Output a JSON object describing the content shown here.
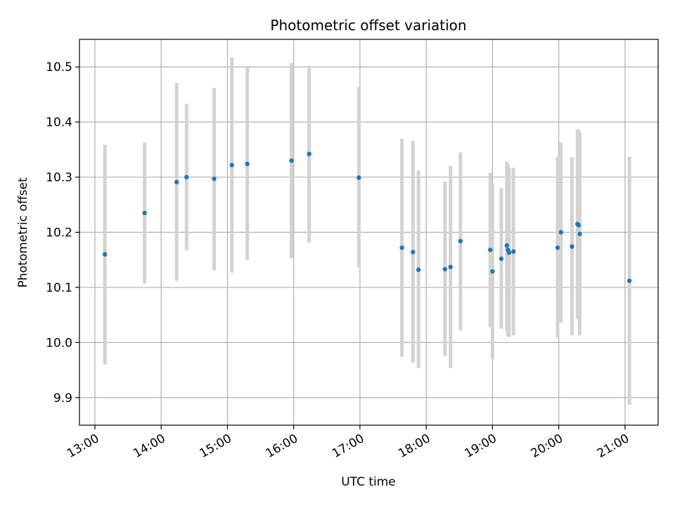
{
  "chart_data": {
    "type": "scatter",
    "title": "Photometric offset variation",
    "xlabel": "UTC time",
    "ylabel": "Photometric offset",
    "xlim": [
      "12:46",
      "21:30"
    ],
    "ylim": [
      9.85,
      10.55
    ],
    "x_ticks": [
      "13:00",
      "14:00",
      "15:00",
      "16:00",
      "17:00",
      "18:00",
      "19:00",
      "20:00",
      "21:00"
    ],
    "y_ticks": [
      9.9,
      10.0,
      10.1,
      10.2,
      10.3,
      10.4,
      10.5
    ],
    "y_tick_labels": [
      "9.9",
      "10.0",
      "10.1",
      "10.2",
      "10.3",
      "10.4",
      "10.5"
    ],
    "grid": true,
    "point_color": "#1f77b4",
    "errorbar_color": "#d3d3d3",
    "points": [
      {
        "t": "13:09",
        "y": 10.16,
        "lo": 9.96,
        "hi": 10.359
      },
      {
        "t": "13:45",
        "y": 10.235,
        "lo": 10.107,
        "hi": 10.363
      },
      {
        "t": "14:14",
        "y": 10.291,
        "lo": 10.112,
        "hi": 10.471
      },
      {
        "t": "14:23",
        "y": 10.3,
        "lo": 10.167,
        "hi": 10.433
      },
      {
        "t": "14:48",
        "y": 10.297,
        "lo": 10.131,
        "hi": 10.462
      },
      {
        "t": "15:04",
        "y": 10.322,
        "lo": 10.127,
        "hi": 10.517
      },
      {
        "t": "15:18",
        "y": 10.324,
        "lo": 10.149,
        "hi": 10.499
      },
      {
        "t": "15:58",
        "y": 10.33,
        "lo": 10.153,
        "hi": 10.507
      },
      {
        "t": "16:14",
        "y": 10.342,
        "lo": 10.181,
        "hi": 10.502
      },
      {
        "t": "16:59",
        "y": 10.299,
        "lo": 10.136,
        "hi": 10.463
      },
      {
        "t": "17:38",
        "y": 10.172,
        "lo": 9.974,
        "hi": 10.37
      },
      {
        "t": "17:48",
        "y": 10.164,
        "lo": 9.963,
        "hi": 10.366
      },
      {
        "t": "17:53",
        "y": 10.132,
        "lo": 9.954,
        "hi": 10.312
      },
      {
        "t": "18:17",
        "y": 10.133,
        "lo": 9.975,
        "hi": 10.292
      },
      {
        "t": "18:22",
        "y": 10.137,
        "lo": 9.954,
        "hi": 10.321
      },
      {
        "t": "18:31",
        "y": 10.184,
        "lo": 10.022,
        "hi": 10.345
      },
      {
        "t": "18:58",
        "y": 10.168,
        "lo": 10.027,
        "hi": 10.308
      },
      {
        "t": "19:00",
        "y": 10.129,
        "lo": 9.97,
        "hi": 10.289
      },
      {
        "t": "19:08",
        "y": 10.152,
        "lo": 10.025,
        "hi": 10.28
      },
      {
        "t": "19:13",
        "y": 10.176,
        "lo": 10.021,
        "hi": 10.328
      },
      {
        "t": "19:14",
        "y": 10.168,
        "lo": 10.011,
        "hi": 10.323
      },
      {
        "t": "19:15",
        "y": 10.163,
        "lo": 10.01,
        "hi": 10.317
      },
      {
        "t": "19:19",
        "y": 10.165,
        "lo": 10.013,
        "hi": 10.317
      },
      {
        "t": "19:59",
        "y": 10.172,
        "lo": 10.008,
        "hi": 10.337
      },
      {
        "t": "20:02",
        "y": 10.2,
        "lo": 10.036,
        "hi": 10.363
      },
      {
        "t": "20:12",
        "y": 10.174,
        "lo": 10.013,
        "hi": 10.336
      },
      {
        "t": "20:17",
        "y": 10.215,
        "lo": 10.043,
        "hi": 10.387
      },
      {
        "t": "20:18",
        "y": 10.213,
        "lo": 10.041,
        "hi": 10.385
      },
      {
        "t": "20:19",
        "y": 10.197,
        "lo": 10.013,
        "hi": 10.381
      },
      {
        "t": "21:04",
        "y": 10.112,
        "lo": 9.887,
        "hi": 10.337
      }
    ]
  }
}
